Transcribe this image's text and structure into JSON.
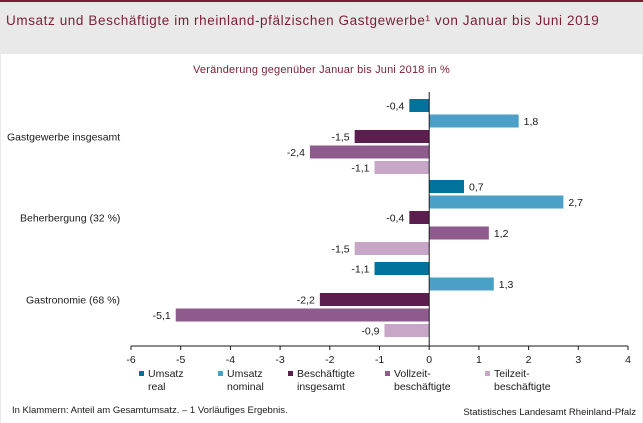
{
  "header": {
    "title": "Umsatz und Beschäftigte im rheinland-pfälzischen Gastgewerbe¹ von Januar bis Juni 2019"
  },
  "chart_data": {
    "type": "bar",
    "orientation": "horizontal",
    "subtitle": "Veränderung gegenüber Januar bis Juni 2018 in %",
    "categories": [
      "Gastgewerbe insgesamt",
      "Beherbergung (32 %)",
      "Gastronomie (68 %)"
    ],
    "series": [
      {
        "name": "Umsatz\nreal",
        "color": "#00729b",
        "values": [
          -0.4,
          0.7,
          -1.1
        ]
      },
      {
        "name": "Umsatz\nnominal",
        "color": "#4ba0c8",
        "values": [
          1.8,
          2.7,
          1.3
        ]
      },
      {
        "name": "Beschäftigte\ninsgesamt",
        "color": "#5c1e4e",
        "values": [
          -1.5,
          -0.4,
          -2.2
        ]
      },
      {
        "name": "Vollzeit-\nbeschäftigte",
        "color": "#8f5a8c",
        "values": [
          -2.4,
          1.2,
          -5.1
        ]
      },
      {
        "name": "Teilzeit-\nbeschäftigte",
        "color": "#c8a6c8",
        "values": [
          -1.1,
          -1.5,
          -0.9
        ]
      }
    ],
    "value_labels": [
      [
        "-0,4",
        "1,8",
        "-1,5",
        "-2,4",
        "-1,1"
      ],
      [
        "0,7",
        "2,7",
        "-0,4",
        "1,2",
        "-1,5"
      ],
      [
        "-1,1",
        "1,3",
        "-2,2",
        "-5,1",
        "-0,9"
      ]
    ],
    "xlim": [
      -6,
      4
    ],
    "xticks": [
      "-6",
      "-5",
      "-4",
      "-3",
      "-2",
      "-1",
      "0",
      "1",
      "2",
      "3",
      "4"
    ],
    "grid": false,
    "legend_position": "bottom"
  },
  "footer": {
    "note": "In Klammern: Anteil am Gesamtumsatz. – 1 Vorläufiges Ergebnis.",
    "source": "Statistisches Landesamt Rheinland-Pfalz"
  }
}
